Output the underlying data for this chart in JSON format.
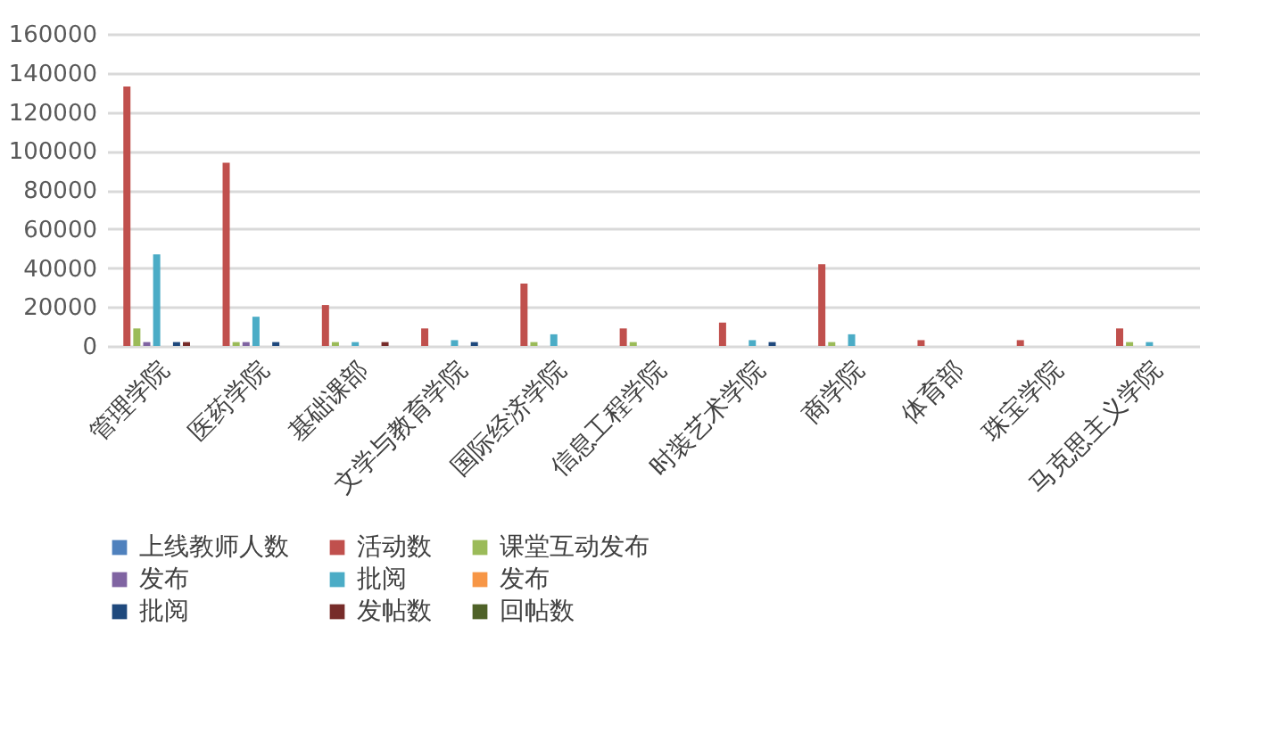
{
  "chart_data": {
    "type": "bar",
    "categories": [
      "管理学院",
      "医药学院",
      "基础课部",
      "文学与教育学院",
      "国际经济学院",
      "信息工程学院",
      "时装艺术学院",
      "商学院",
      "体育部",
      "珠宝学院",
      "马克思主义学院"
    ],
    "series": [
      {
        "name": "上线教师人数",
        "color": "#4f81bd",
        "values": [
          0,
          0,
          0,
          0,
          0,
          0,
          0,
          0,
          0,
          0,
          0
        ]
      },
      {
        "name": "活动数",
        "color": "#c0504d",
        "values": [
          133000,
          94000,
          21000,
          9000,
          32000,
          9000,
          12000,
          42000,
          3000,
          3000,
          9000
        ]
      },
      {
        "name": "课堂互动发布",
        "color": "#9bbb59",
        "values": [
          9000,
          2000,
          2000,
          0,
          2000,
          2000,
          0,
          2000,
          0,
          0,
          2000
        ]
      },
      {
        "name": "发布",
        "color": "#8064a2",
        "values": [
          2000,
          2000,
          0,
          0,
          0,
          0,
          0,
          0,
          0,
          0,
          0
        ]
      },
      {
        "name": "批阅",
        "color": "#4bacc6",
        "values": [
          47000,
          15000,
          2000,
          3000,
          6000,
          0,
          3000,
          6000,
          0,
          0,
          2000
        ]
      },
      {
        "name": "发布",
        "color": "#f79646",
        "values": [
          0,
          0,
          0,
          0,
          0,
          0,
          0,
          0,
          0,
          0,
          0
        ]
      },
      {
        "name": "批阅",
        "color": "#1f497d",
        "values": [
          2000,
          2000,
          0,
          2000,
          0,
          0,
          2000,
          0,
          0,
          0,
          0
        ]
      },
      {
        "name": "发帖数",
        "color": "#772c2a",
        "values": [
          2000,
          0,
          2000,
          0,
          0,
          0,
          0,
          0,
          0,
          0,
          0
        ]
      },
      {
        "name": "回帖数",
        "color": "#4f6228",
        "values": [
          0,
          0,
          0,
          0,
          0,
          0,
          0,
          0,
          0,
          0,
          0
        ]
      }
    ],
    "ylim": [
      0,
      160000
    ],
    "yticks": [
      0,
      20000,
      40000,
      60000,
      80000,
      100000,
      120000,
      140000,
      160000
    ],
    "grid": "y",
    "legend": "bottom"
  }
}
